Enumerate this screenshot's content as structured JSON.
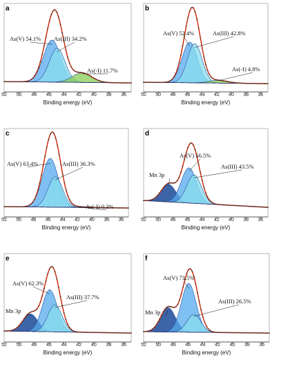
{
  "colors": {
    "fit": "#cc2200",
    "data_point": "#333333",
    "as_v_fill": "#55aaee",
    "as_iii_fill": "#88ddee",
    "as_neg1_fill": "#88cc55",
    "mn3p_fill": "#1a4a99",
    "background": "#2a2a66",
    "component_line": "#2a4f9a",
    "noise_pink": "#ee99cc"
  },
  "chart_data": [
    {
      "panel": "a",
      "type": "area",
      "xlabel": "Binding energy (eV)",
      "xlim": [
        52,
        35
      ],
      "x_ticks": [
        "52",
        "50",
        "48",
        "46",
        "44",
        "42",
        "40",
        "38",
        "36"
      ],
      "peaks": [
        {
          "label": "As(V) 54.1%",
          "center": 45.6,
          "amp": 0.62,
          "width": 1.15,
          "fill_key": "as_v_fill"
        },
        {
          "label": "As(III) 34.2%",
          "center": 44.9,
          "amp": 0.5,
          "width": 1.05,
          "fill_key": "as_iii_fill"
        },
        {
          "label": "As(-I) 11.7%",
          "center": 41.6,
          "amp": 0.14,
          "width": 1.3,
          "fill_key": "as_neg1_fill"
        }
      ],
      "background_levels": [
        0.05,
        0.03
      ]
    },
    {
      "panel": "b",
      "type": "area",
      "xlabel": "Binding energy (eV)",
      "xlim": [
        52,
        35
      ],
      "x_ticks": [
        "52",
        "50",
        "48",
        "46",
        "44",
        "42",
        "40",
        "38",
        "36"
      ],
      "peaks": [
        {
          "label": "As(V) 52.4%",
          "center": 45.7,
          "amp": 0.6,
          "width": 1.05,
          "fill_key": "as_v_fill"
        },
        {
          "label": "As(III) 42.8%",
          "center": 45.0,
          "amp": 0.58,
          "width": 1.0,
          "fill_key": "as_iii_fill"
        },
        {
          "label": "As(-I) 4.8%",
          "center": 41.8,
          "amp": 0.04,
          "width": 1.3,
          "fill_key": "as_neg1_fill"
        }
      ],
      "background_levels": [
        0.04,
        0.02
      ]
    },
    {
      "panel": "c",
      "type": "area",
      "xlabel": "Binding energy (eV)",
      "xlim": [
        52,
        35
      ],
      "x_ticks": [
        "52",
        "50",
        "48",
        "46",
        "44",
        "42",
        "40",
        "38",
        "36"
      ],
      "peaks": [
        {
          "label": "As(V) 63.4%",
          "center": 45.7,
          "amp": 0.72,
          "width": 1.1,
          "fill_key": "as_v_fill"
        },
        {
          "label": "As(III) 36.3%",
          "center": 45.0,
          "amp": 0.45,
          "width": 1.0,
          "fill_key": "as_iii_fill"
        },
        {
          "label": "As(-I) 0.3%",
          "center": 41.8,
          "amp": 0.01,
          "width": 1.3,
          "fill_key": "as_neg1_fill"
        }
      ],
      "background_levels": [
        0.05,
        0.03
      ]
    },
    {
      "panel": "d",
      "type": "area",
      "xlabel": "Binding energy (eV)",
      "xlim": [
        52,
        35
      ],
      "x_ticks": [
        "52",
        "50",
        "48",
        "46",
        "44",
        "42",
        "40",
        "38",
        "36"
      ],
      "peaks": [
        {
          "label": "Mn 3p",
          "center": 48.6,
          "amp": 0.26,
          "width": 1.0,
          "fill_key": "mn3p_fill"
        },
        {
          "label": "As(V) 56.5%",
          "center": 45.8,
          "amp": 0.52,
          "width": 1.05,
          "fill_key": "as_v_fill"
        },
        {
          "label": "As(III) 43.5%",
          "center": 45.1,
          "amp": 0.42,
          "width": 1.0,
          "fill_key": "as_iii_fill"
        }
      ],
      "background_levels": [
        0.14,
        0.04
      ]
    },
    {
      "panel": "e",
      "type": "area",
      "xlabel": "Binding energy (eV)",
      "xlim": [
        52,
        35
      ],
      "x_ticks": [
        "52",
        "50",
        "48",
        "46",
        "44",
        "42",
        "40",
        "38",
        "36"
      ],
      "peaks": [
        {
          "label": "Mn 3p",
          "center": 48.5,
          "amp": 0.26,
          "width": 1.0,
          "fill_key": "mn3p_fill"
        },
        {
          "label": "As(V) 62.3%",
          "center": 45.9,
          "amp": 0.62,
          "width": 1.0,
          "fill_key": "as_v_fill"
        },
        {
          "label": "As(III) 37.7%",
          "center": 45.2,
          "amp": 0.4,
          "width": 0.95,
          "fill_key": "as_iii_fill"
        }
      ],
      "background_levels": [
        0.06,
        0.03
      ]
    },
    {
      "panel": "f",
      "type": "area",
      "xlabel": "Binding energy (eV)",
      "xlim": [
        52,
        35
      ],
      "x_ticks": [
        "52",
        "50",
        "48",
        "46",
        "44",
        "42",
        "40",
        "38",
        "36"
      ],
      "peaks": [
        {
          "label": "Mn 3p",
          "center": 48.7,
          "amp": 0.36,
          "width": 1.0,
          "fill_key": "mn3p_fill"
        },
        {
          "label": "As(V) 73.5%",
          "center": 45.9,
          "amp": 0.72,
          "width": 1.0,
          "fill_key": "as_v_fill"
        },
        {
          "label": "As(III) 26.5%",
          "center": 45.2,
          "amp": 0.26,
          "width": 0.95,
          "fill_key": "as_iii_fill"
        }
      ],
      "background_levels": [
        0.05,
        0.03
      ]
    }
  ]
}
